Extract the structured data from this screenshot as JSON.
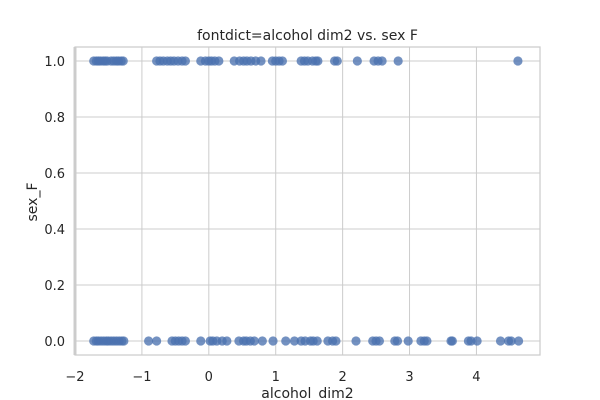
{
  "chart_data": {
    "type": "scatter",
    "title": "fontdict=alcohol dim2 vs. sex F",
    "xlabel": "alcohol_dim2",
    "ylabel": "sex_F",
    "xlim": [
      -2,
      4.95
    ],
    "ylim": [
      -0.05,
      1.05
    ],
    "xticks": [
      -2,
      -1,
      0,
      1,
      2,
      3,
      4
    ],
    "yticks": [
      0.0,
      0.2,
      0.4,
      0.6,
      0.8,
      1.0
    ],
    "xtick_labels": [
      "−2",
      "−1",
      "0",
      "1",
      "2",
      "3",
      "4"
    ],
    "ytick_labels": [
      "0.0",
      "0.2",
      "0.4",
      "0.6",
      "0.8",
      "1.0"
    ],
    "grid": true,
    "marker_color": "#4c72b0",
    "series": [
      {
        "points": [
          [
            -1.72,
            1
          ],
          [
            -1.68,
            1
          ],
          [
            -1.65,
            1
          ],
          [
            -1.62,
            1
          ],
          [
            -1.58,
            1
          ],
          [
            -1.55,
            1
          ],
          [
            -1.52,
            1
          ],
          [
            -1.46,
            1
          ],
          [
            -1.42,
            1
          ],
          [
            -1.38,
            1
          ],
          [
            -1.35,
            1
          ],
          [
            -1.31,
            1
          ],
          [
            -1.28,
            1
          ],
          [
            -0.78,
            1
          ],
          [
            -0.73,
            1
          ],
          [
            -0.68,
            1
          ],
          [
            -0.62,
            1
          ],
          [
            -0.57,
            1
          ],
          [
            -0.52,
            1
          ],
          [
            -0.46,
            1
          ],
          [
            -0.4,
            1
          ],
          [
            -0.35,
            1
          ],
          [
            -0.12,
            1
          ],
          [
            -0.05,
            1
          ],
          [
            0.0,
            1
          ],
          [
            0.04,
            1
          ],
          [
            0.09,
            1
          ],
          [
            0.15,
            1
          ],
          [
            0.38,
            1
          ],
          [
            0.46,
            1
          ],
          [
            0.52,
            1
          ],
          [
            0.57,
            1
          ],
          [
            0.63,
            1
          ],
          [
            0.7,
            1
          ],
          [
            0.78,
            1
          ],
          [
            0.95,
            1
          ],
          [
            1.0,
            1
          ],
          [
            1.05,
            1
          ],
          [
            1.1,
            1
          ],
          [
            1.38,
            1
          ],
          [
            1.43,
            1
          ],
          [
            1.48,
            1
          ],
          [
            1.55,
            1
          ],
          [
            1.6,
            1
          ],
          [
            1.63,
            1
          ],
          [
            1.88,
            1
          ],
          [
            1.92,
            1
          ],
          [
            2.22,
            1
          ],
          [
            2.47,
            1
          ],
          [
            2.53,
            1
          ],
          [
            2.59,
            1
          ],
          [
            2.83,
            1
          ],
          [
            4.62,
            1
          ],
          [
            -1.72,
            0
          ],
          [
            -1.68,
            0
          ],
          [
            -1.65,
            0
          ],
          [
            -1.61,
            0
          ],
          [
            -1.57,
            0
          ],
          [
            -1.53,
            0
          ],
          [
            -1.5,
            0
          ],
          [
            -1.46,
            0
          ],
          [
            -1.42,
            0
          ],
          [
            -1.38,
            0
          ],
          [
            -1.34,
            0
          ],
          [
            -1.3,
            0
          ],
          [
            -1.27,
            0
          ],
          [
            -0.9,
            0
          ],
          [
            -0.78,
            0
          ],
          [
            -0.55,
            0
          ],
          [
            -0.5,
            0
          ],
          [
            -0.45,
            0
          ],
          [
            -0.4,
            0
          ],
          [
            -0.35,
            0
          ],
          [
            -0.12,
            0
          ],
          [
            0.02,
            0
          ],
          [
            0.06,
            0
          ],
          [
            0.12,
            0
          ],
          [
            0.2,
            0
          ],
          [
            0.27,
            0
          ],
          [
            0.45,
            0
          ],
          [
            0.52,
            0
          ],
          [
            0.56,
            0
          ],
          [
            0.62,
            0
          ],
          [
            0.68,
            0
          ],
          [
            0.8,
            0
          ],
          [
            0.96,
            0
          ],
          [
            1.15,
            0
          ],
          [
            1.28,
            0
          ],
          [
            1.38,
            0
          ],
          [
            1.44,
            0
          ],
          [
            1.52,
            0
          ],
          [
            1.56,
            0
          ],
          [
            1.62,
            0
          ],
          [
            1.78,
            0
          ],
          [
            1.85,
            0
          ],
          [
            1.9,
            0
          ],
          [
            2.2,
            0
          ],
          [
            2.45,
            0
          ],
          [
            2.5,
            0
          ],
          [
            2.55,
            0
          ],
          [
            2.78,
            0
          ],
          [
            2.82,
            0
          ],
          [
            2.98,
            0
          ],
          [
            3.17,
            0
          ],
          [
            3.22,
            0
          ],
          [
            3.26,
            0
          ],
          [
            3.62,
            0
          ],
          [
            3.64,
            0
          ],
          [
            3.88,
            0
          ],
          [
            3.92,
            0
          ],
          [
            4.01,
            0
          ],
          [
            4.36,
            0
          ],
          [
            4.48,
            0
          ],
          [
            4.52,
            0
          ],
          [
            4.63,
            0
          ]
        ]
      }
    ]
  }
}
